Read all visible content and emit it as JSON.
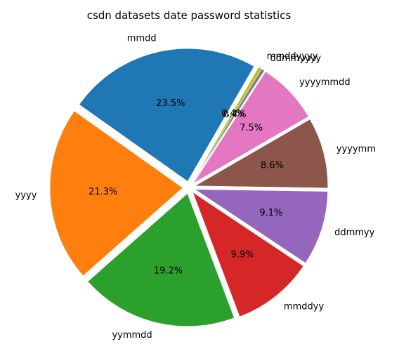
{
  "chart_data": {
    "type": "pie",
    "title": "csdn datasets date password statistics",
    "categories": [
      "mmdd",
      "yyyy",
      "yymmdd",
      "mmddyy",
      "ddmmyy",
      "yyyymm",
      "yyyymmdd",
      "ddmmyyyy",
      "mmddyyyy"
    ],
    "values": [
      23.5,
      21.3,
      19.2,
      9.9,
      9.1,
      8.6,
      7.5,
      0.4,
      0.4
    ],
    "value_labels": [
      "23.5%",
      "21.3%",
      "19.2%",
      "9.9%",
      "9.1%",
      "8.6%",
      "7.5%",
      "0.4%",
      "0.4%"
    ],
    "colors": [
      "#1f77b4",
      "#ff7f0e",
      "#2ca02c",
      "#d62728",
      "#9467bd",
      "#8c564b",
      "#e377c2",
      "#7f7f7f",
      "#bcbd22"
    ],
    "start_angle_deg": 60,
    "direction": "counterclockwise",
    "exploded": true,
    "legend": "none"
  }
}
